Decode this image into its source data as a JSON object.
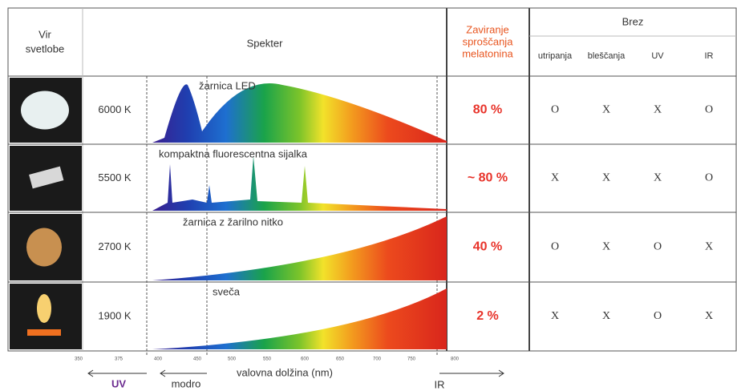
{
  "header": {
    "source": [
      "Vir",
      "svetlobe"
    ],
    "spectrum": "Spekter",
    "melatonin": [
      "Zaviranje",
      "sproščanja",
      "melatonina"
    ],
    "without": "Brez",
    "without_cols": [
      "utripanja",
      "bleščanja",
      "UV",
      "IR"
    ]
  },
  "rows": [
    {
      "temperature": "6000 K",
      "lamp": "žarnica LED",
      "melatonin": "80 %",
      "marks": [
        "O",
        "X",
        "X",
        "O"
      ]
    },
    {
      "temperature": "5500 K",
      "lamp": "kompaktna fluorescentna sijalka",
      "melatonin": "~ 80 %",
      "marks": [
        "X",
        "X",
        "X",
        "O"
      ]
    },
    {
      "temperature": "2700 K",
      "lamp": "žarnica z žarilno nitko",
      "melatonin": "40 %",
      "marks": [
        "O",
        "X",
        "O",
        "X"
      ]
    },
    {
      "temperature": "1900 K",
      "lamp": "sveča",
      "melatonin": "2 %",
      "marks": [
        "X",
        "X",
        "O",
        "X"
      ]
    }
  ],
  "axis": {
    "ticks": [
      "350",
      "375",
      "400",
      "450",
      "500",
      "550",
      "600",
      "650",
      "700",
      "750",
      "800"
    ],
    "label": "valovna dolžina (nm)",
    "uv": "UV",
    "blue": "modro",
    "ir": "IR"
  }
}
